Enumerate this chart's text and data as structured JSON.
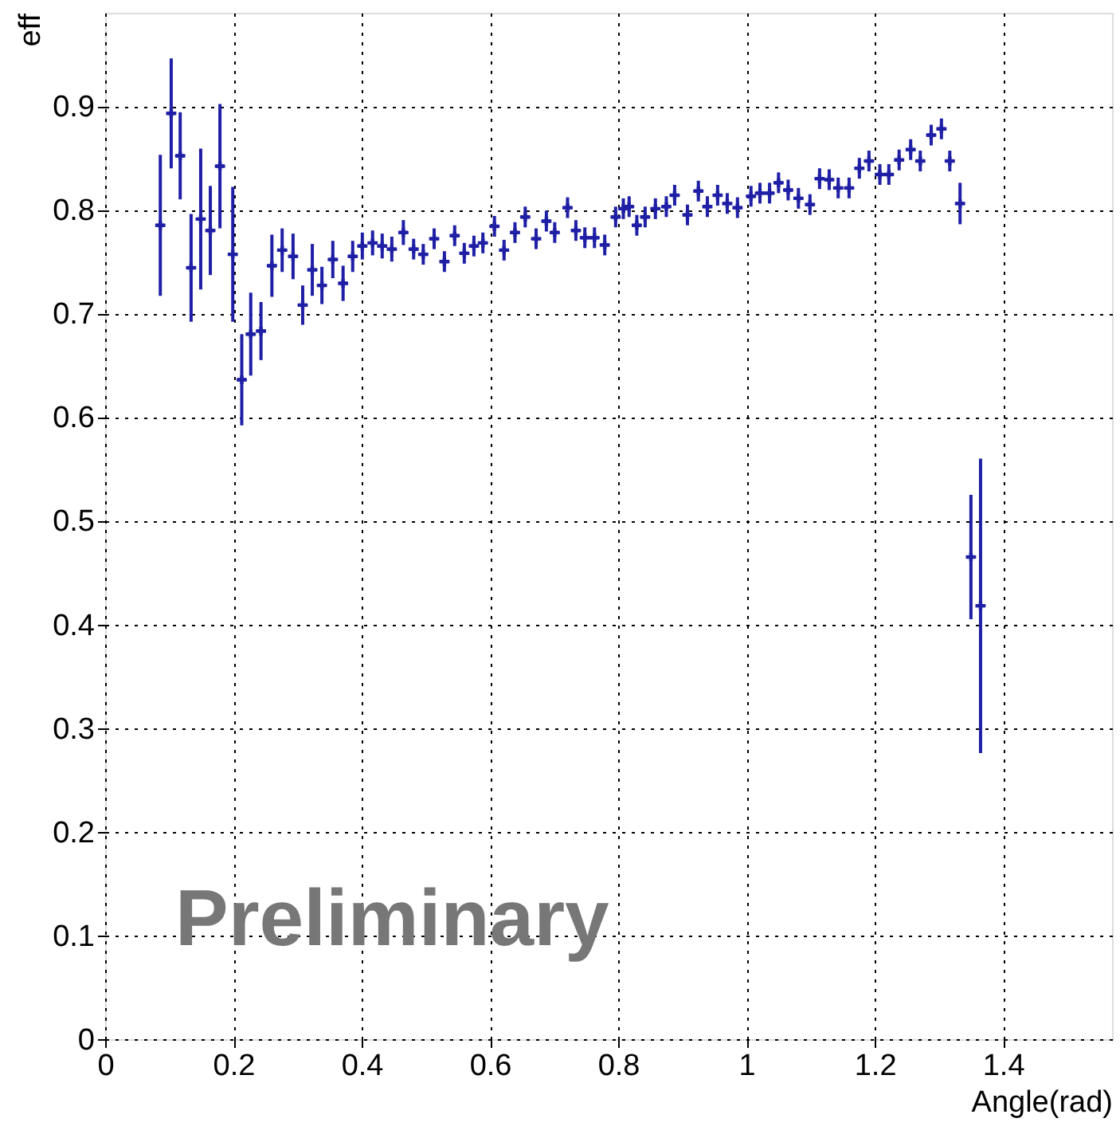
{
  "chart_data": {
    "type": "scatter",
    "xlabel": "Angle(rad)",
    "ylabel": "eff",
    "annotations": [
      "Preliminary"
    ],
    "xlim": [
      0,
      1.57
    ],
    "ylim": [
      0,
      0.99
    ],
    "xticks": [
      0,
      0.2,
      0.4,
      0.6,
      0.8,
      1,
      1.2,
      1.4
    ],
    "yticks": [
      0,
      0.1,
      0.2,
      0.3,
      0.4,
      0.5,
      0.6,
      0.7,
      0.8,
      0.9
    ],
    "grid": true,
    "marker": "cross",
    "x": [
      0.086,
      0.103,
      0.117,
      0.134,
      0.149,
      0.164,
      0.179,
      0.199,
      0.213,
      0.227,
      0.243,
      0.26,
      0.276,
      0.293,
      0.308,
      0.323,
      0.338,
      0.355,
      0.371,
      0.386,
      0.401,
      0.417,
      0.432,
      0.447,
      0.465,
      0.481,
      0.496,
      0.513,
      0.529,
      0.545,
      0.56,
      0.575,
      0.589,
      0.607,
      0.622,
      0.639,
      0.655,
      0.672,
      0.688,
      0.701,
      0.721,
      0.734,
      0.748,
      0.763,
      0.779,
      0.796,
      0.808,
      0.817,
      0.829,
      0.842,
      0.858,
      0.875,
      0.888,
      0.908,
      0.925,
      0.939,
      0.955,
      0.97,
      0.986,
      1.007,
      1.021,
      1.036,
      1.05,
      1.065,
      1.081,
      1.099,
      1.114,
      1.129,
      1.143,
      1.16,
      1.176,
      1.191,
      1.208,
      1.222,
      1.238,
      1.256,
      1.271,
      1.288,
      1.304,
      1.317,
      1.333,
      1.35,
      1.365
    ],
    "series": [
      {
        "color": "#1f1fa6",
        "values": [
          0.785,
          0.893,
          0.852,
          0.744,
          0.791,
          0.78,
          0.842,
          0.757,
          0.636,
          0.68,
          0.683,
          0.746,
          0.761,
          0.755,
          0.708,
          0.742,
          0.727,
          0.752,
          0.729,
          0.755,
          0.765,
          0.768,
          0.765,
          0.762,
          0.778,
          0.762,
          0.757,
          0.772,
          0.75,
          0.775,
          0.758,
          0.765,
          0.768,
          0.784,
          0.761,
          0.778,
          0.793,
          0.772,
          0.789,
          0.778,
          0.802,
          0.78,
          0.773,
          0.773,
          0.766,
          0.793,
          0.801,
          0.803,
          0.785,
          0.793,
          0.801,
          0.803,
          0.814,
          0.795,
          0.818,
          0.803,
          0.814,
          0.806,
          0.802,
          0.813,
          0.816,
          0.816,
          0.826,
          0.819,
          0.811,
          0.805,
          0.83,
          0.829,
          0.821,
          0.821,
          0.84,
          0.847,
          0.834,
          0.834,
          0.848,
          0.858,
          0.847,
          0.872,
          0.878,
          0.847,
          0.806,
          0.465,
          0.418
        ],
        "errors": [
          0.068,
          0.053,
          0.042,
          0.052,
          0.068,
          0.043,
          0.06,
          0.065,
          0.044,
          0.04,
          0.028,
          0.03,
          0.021,
          0.022,
          0.019,
          0.025,
          0.018,
          0.018,
          0.017,
          0.015,
          0.013,
          0.012,
          0.012,
          0.012,
          0.012,
          0.01,
          0.01,
          0.01,
          0.01,
          0.01,
          0.01,
          0.01,
          0.01,
          0.01,
          0.01,
          0.01,
          0.01,
          0.01,
          0.01,
          0.01,
          0.01,
          0.01,
          0.01,
          0.01,
          0.01,
          0.01,
          0.01,
          0.01,
          0.01,
          0.01,
          0.01,
          0.01,
          0.01,
          0.01,
          0.01,
          0.01,
          0.01,
          0.01,
          0.01,
          0.01,
          0.01,
          0.01,
          0.01,
          0.01,
          0.01,
          0.01,
          0.01,
          0.01,
          0.01,
          0.01,
          0.01,
          0.01,
          0.01,
          0.01,
          0.01,
          0.01,
          0.01,
          0.01,
          0.01,
          0.01,
          0.02,
          0.06,
          0.142
        ],
        "xerrors": [
          0.008,
          0.008,
          0.008,
          0.008,
          0.008,
          0.008,
          0.008,
          0.008,
          0.008,
          0.008,
          0.008,
          0.008,
          0.008,
          0.008,
          0.008,
          0.008,
          0.008,
          0.008,
          0.008,
          0.008,
          0.008,
          0.008,
          0.008,
          0.008,
          0.008,
          0.008,
          0.008,
          0.008,
          0.008,
          0.008,
          0.008,
          0.008,
          0.008,
          0.008,
          0.008,
          0.008,
          0.008,
          0.008,
          0.008,
          0.008,
          0.008,
          0.008,
          0.008,
          0.008,
          0.008,
          0.008,
          0.008,
          0.008,
          0.008,
          0.008,
          0.008,
          0.008,
          0.008,
          0.008,
          0.008,
          0.008,
          0.008,
          0.008,
          0.008,
          0.008,
          0.008,
          0.008,
          0.008,
          0.008,
          0.008,
          0.008,
          0.008,
          0.008,
          0.008,
          0.008,
          0.008,
          0.008,
          0.008,
          0.008,
          0.008,
          0.008,
          0.008,
          0.008,
          0.008,
          0.008,
          0.008,
          0.008,
          0.008
        ]
      }
    ]
  }
}
